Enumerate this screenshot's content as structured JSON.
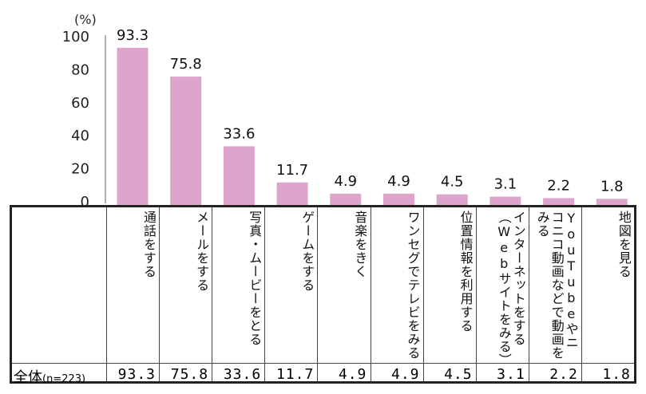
{
  "chart_data": {
    "type": "bar",
    "unit_label": "(%)",
    "ylim": [
      0,
      100
    ],
    "yticks": [
      "0",
      "20",
      "40",
      "60",
      "80",
      "100"
    ],
    "bar_color": "#dda4cc",
    "categories": [
      "通話をする",
      "メールをする",
      "写真・ムービーをとる",
      "ゲームをする",
      "音楽をきく",
      "ワンセグでテレビをみる",
      "位置情報を利用する",
      "インターネットをする（Webサイトをみる）",
      "YouTubeやニコニコ動画などで動画をみる",
      "地図を見る"
    ],
    "values": [
      93.3,
      75.8,
      33.6,
      11.7,
      4.9,
      4.9,
      4.5,
      3.1,
      2.2,
      1.8
    ],
    "value_labels": [
      "93.3",
      "75.8",
      "33.6",
      "11.7",
      "4.9",
      "4.9",
      "4.5",
      "3.1",
      "2.2",
      "1.8"
    ]
  },
  "table": {
    "row_label": "全体",
    "row_sub": "(n=223)",
    "row_values": [
      "93.3",
      "75.8",
      "33.6",
      "11.7",
      "4.9",
      "4.9",
      "4.5",
      "3.1",
      "2.2",
      "1.8"
    ]
  }
}
